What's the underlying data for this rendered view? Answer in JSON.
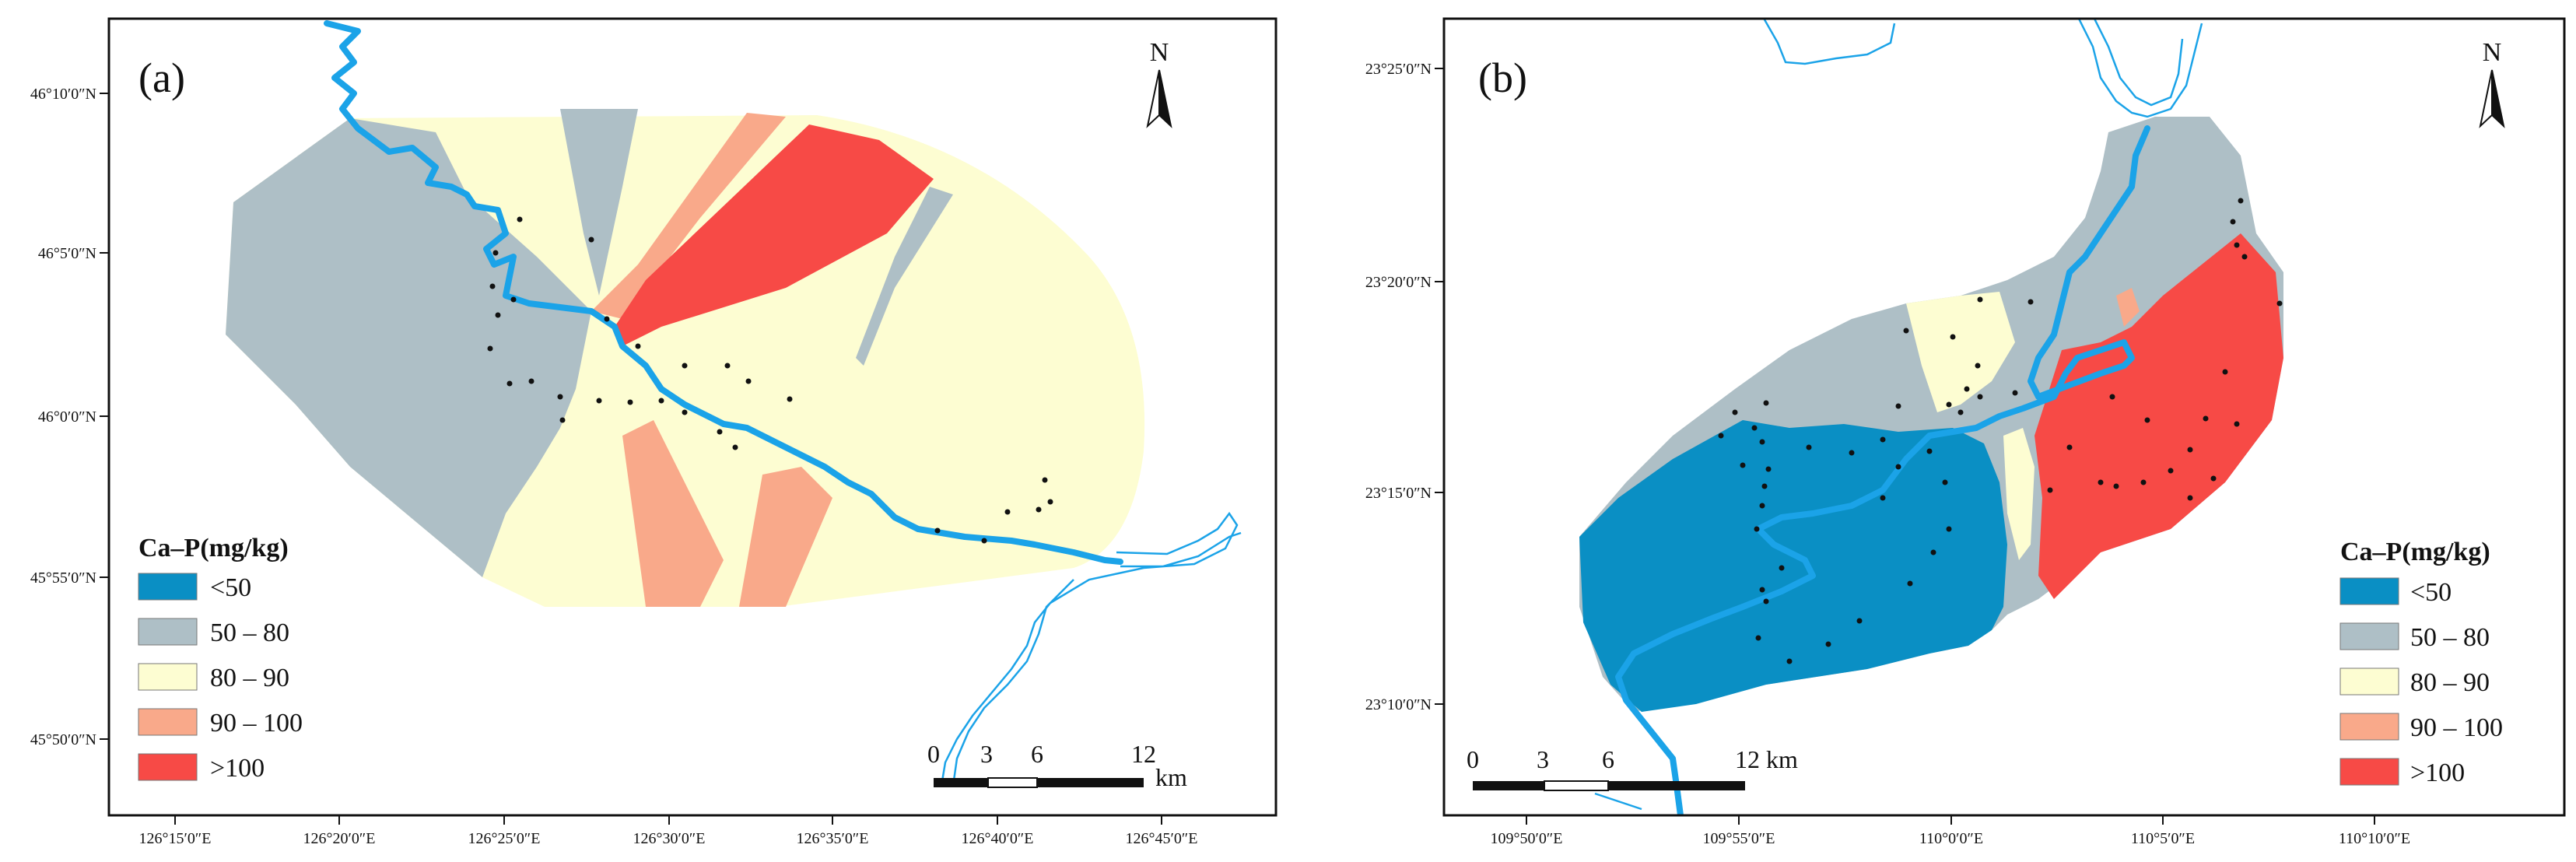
{
  "legend": {
    "title": "Ca–P(mg/kg)",
    "classes": [
      {
        "label": "<50",
        "color": "#0a8fc4"
      },
      {
        "label": "50 – 80",
        "color": "#aebfc6"
      },
      {
        "label": "80 – 90",
        "color": "#fdfdd2"
      },
      {
        "label": "90 – 100",
        "color": "#f9a98a"
      },
      {
        "label": ">100",
        "color": "#f74a46"
      }
    ]
  },
  "river_color": "#1ba3e8",
  "map_a": {
    "label": "(a)",
    "north": "N",
    "scale_bar": {
      "ticks": [
        "0",
        "3",
        "6",
        "12"
      ],
      "unit": "km"
    },
    "y_ticks": [
      "46°10′0″N",
      "46°5′0″N",
      "46°0′0″N",
      "45°55′0″N",
      "45°50′0″N"
    ],
    "x_ticks": [
      "126°15′0″E",
      "126°20′0″E",
      "126°25′0″E",
      "126°30′0″E",
      "126°35′0″E",
      "126°40′0″E",
      "126°45′0″E"
    ]
  },
  "map_b": {
    "label": "(b)",
    "north": "N",
    "scale_bar": {
      "ticks": [
        "0",
        "3",
        "6",
        "12 km"
      ],
      "unit": ""
    },
    "y_ticks": [
      "23°25′0″N",
      "23°20′0″N",
      "23°15′0″N",
      "23°10′0″N"
    ],
    "x_ticks": [
      "109°50′0″E",
      "109°55′0″E",
      "110°0′0″E",
      "110°5′0″E",
      "110°10′0″E"
    ]
  }
}
